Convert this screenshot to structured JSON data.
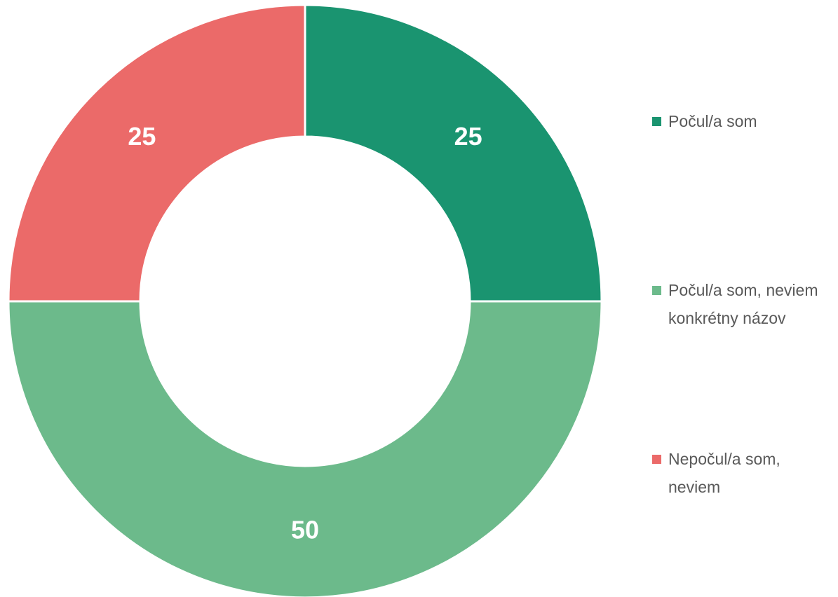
{
  "chart_data": {
    "type": "donut",
    "categories": [
      "Počul/a som",
      "Počul/a som, neviem konkrétny názov",
      "Nepočul/a som, neviem"
    ],
    "values": [
      25,
      50,
      25
    ],
    "colors": [
      "#1a9470",
      "#6cba8b",
      "#eb6a69"
    ],
    "legend": "right"
  }
}
